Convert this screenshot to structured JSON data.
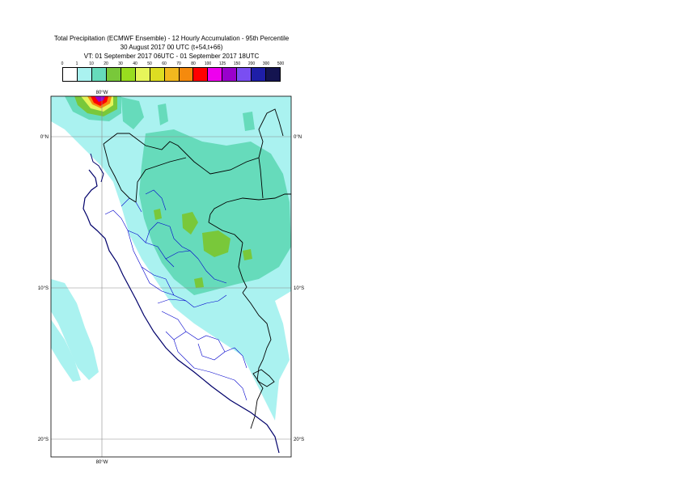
{
  "title": {
    "line1": "Total Precipitation (ECMWF Ensemble) - 12 Hourly Accumulation - 95th Percentile",
    "line2": "30 August 2017 00 UTC (t+54,t+66)",
    "line3": "VT: 01 September 2017 06UTC - 01 September 2017 18UTC"
  },
  "legend": {
    "labels": [
      "0",
      "1",
      "10",
      "20",
      "30",
      "40",
      "50",
      "60",
      "70",
      "80",
      "100",
      "125",
      "150",
      "200",
      "300",
      "500"
    ],
    "colors": [
      "#ffffff",
      "#aaf2f0",
      "#66dbbb",
      "#79c83a",
      "#99dd1f",
      "#e6f55a",
      "#dddd22",
      "#f2b81f",
      "#f58a0d",
      "#ff0000",
      "#ee00ee",
      "#9900cc",
      "#7a4ef2",
      "#1e1ea8",
      "#141450"
    ]
  },
  "map": {
    "lon_labels": [
      "80°W"
    ],
    "lat_labels": [
      "0°N",
      "10°S",
      "20°S"
    ],
    "colors": {
      "land_border": "#000000",
      "admin_border": "#0000cc",
      "coast": "#00006a",
      "grid": "#8c8c8c"
    }
  }
}
